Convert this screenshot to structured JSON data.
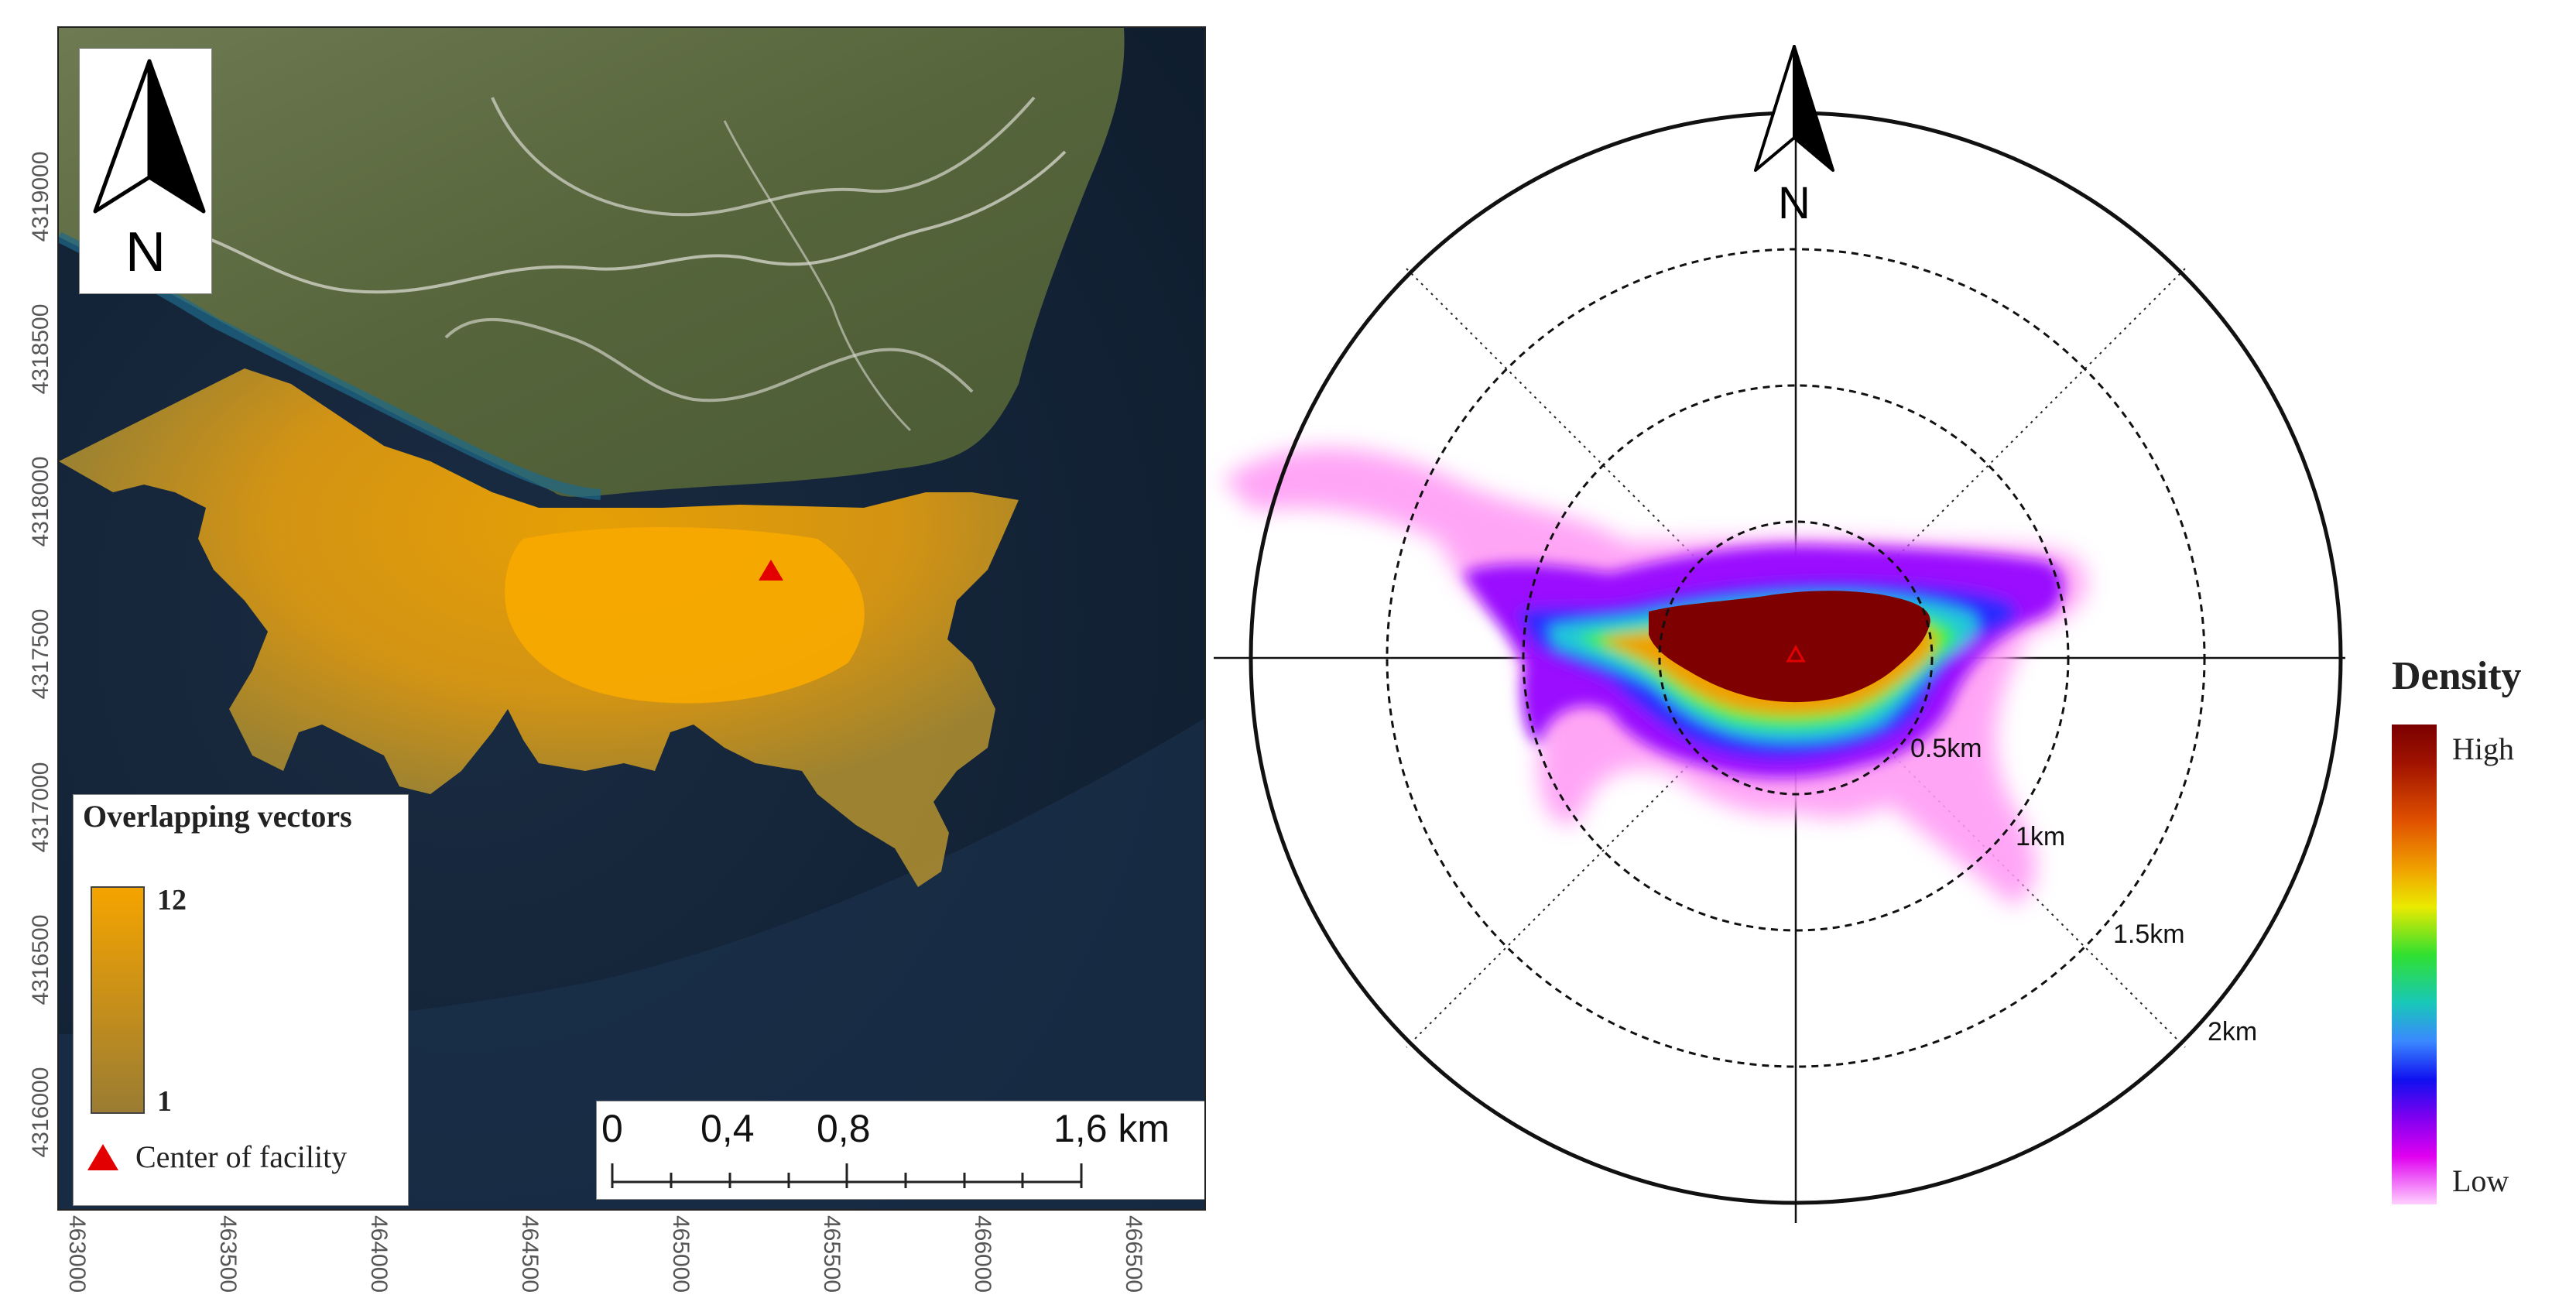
{
  "map": {
    "north_label": "N",
    "y_axis_labels": [
      "4319000",
      "4318500",
      "4318000",
      "4317500",
      "4317000",
      "4316500",
      "4316000"
    ],
    "x_axis_labels": [
      "463000",
      "463500",
      "464000",
      "464500",
      "465000",
      "465500",
      "466000",
      "466500"
    ],
    "legend": {
      "title": "Overlapping vectors",
      "max_value": "12",
      "min_value": "1",
      "center_label": "Center of facility",
      "ramp_colors": [
        "#f5a400",
        "#9a7c33"
      ]
    },
    "scale_bar": {
      "labels": [
        "0",
        "0,4",
        "0,8",
        "1,6 km"
      ]
    }
  },
  "polar": {
    "north_label": "N",
    "ring_labels": [
      "0.5km",
      "1km",
      "1.5km",
      "2km"
    ],
    "density_legend": {
      "title": "Density",
      "high_label": "High",
      "low_label": "Low"
    }
  },
  "colors": {
    "sea": "#15263a",
    "land": "#5e6a42",
    "footprint_high": "#f5a400",
    "footprint_low": "#a88a30",
    "facility_marker": "#e30000"
  }
}
